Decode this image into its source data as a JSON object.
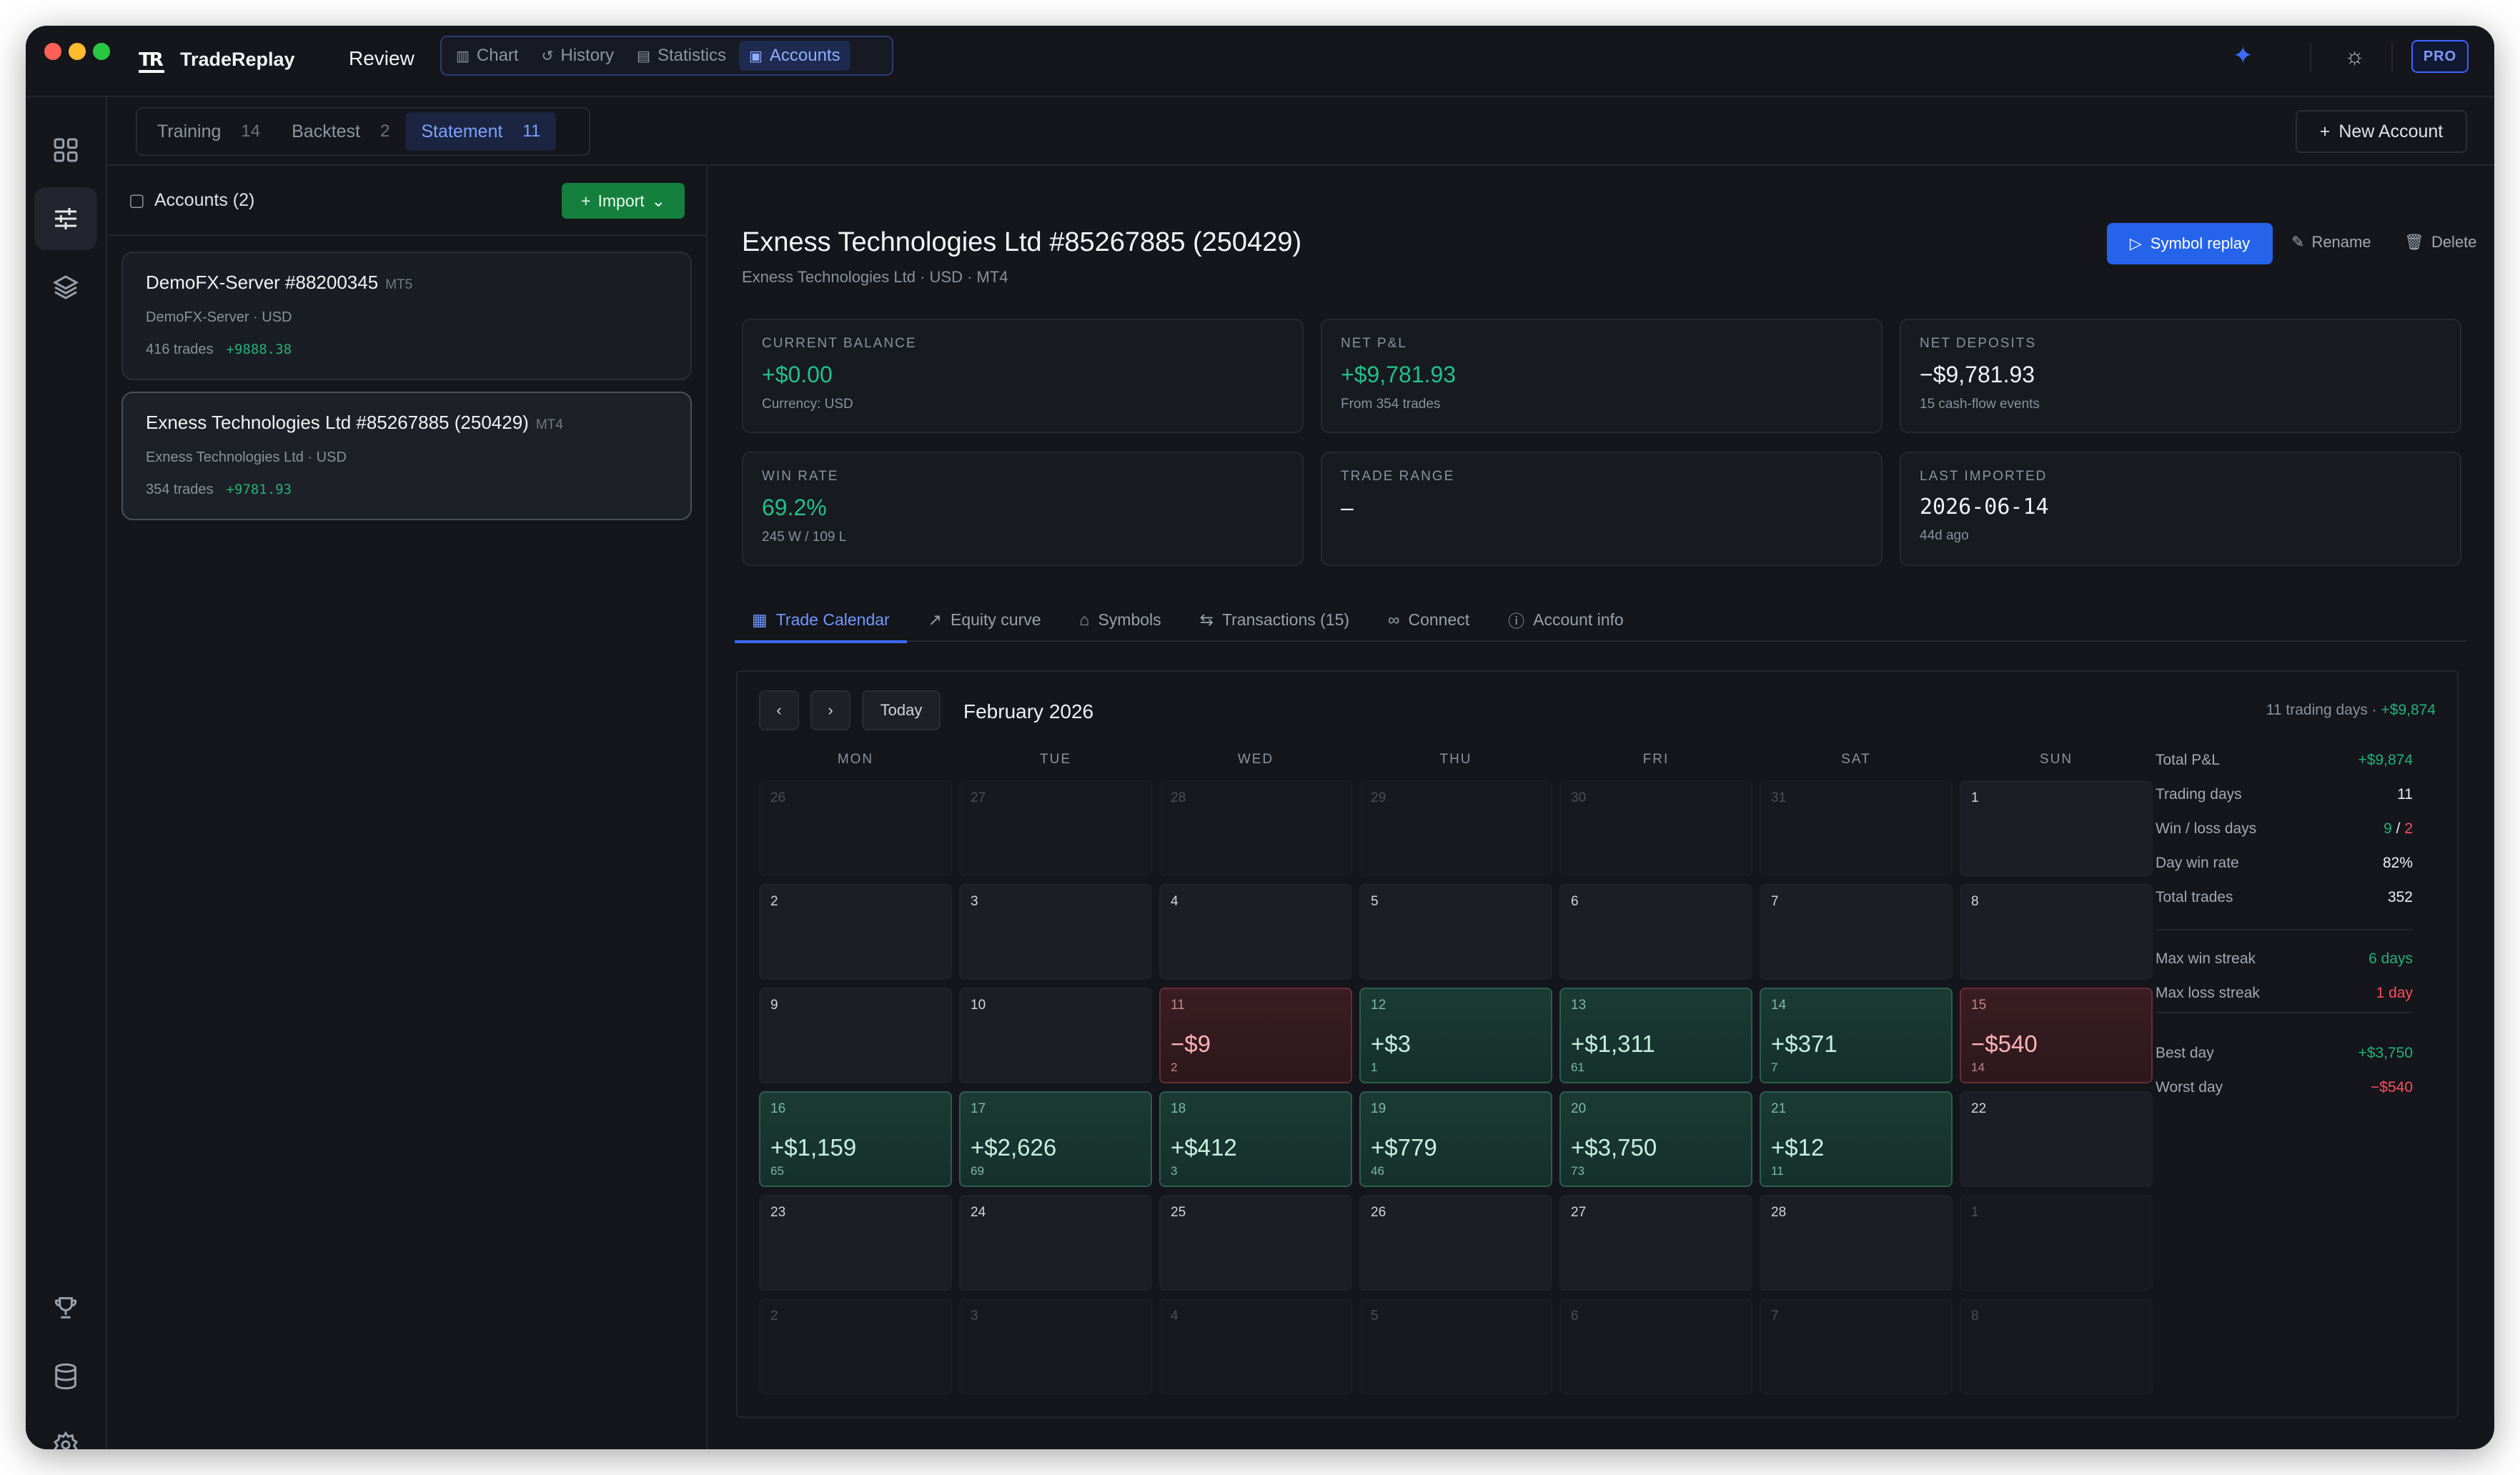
{
  "app": {
    "name": "TradeReplay",
    "logo": "TR",
    "review_label": "Review",
    "nav": [
      {
        "label": "Chart",
        "icon": "bar-chart-icon"
      },
      {
        "label": "History",
        "icon": "history-icon"
      },
      {
        "label": "Statistics",
        "icon": "statistics-icon"
      },
      {
        "label": "Accounts",
        "icon": "wallet-icon",
        "active": true
      }
    ],
    "pro_label": "PRO",
    "accent": "#3b6cff"
  },
  "subtabs": [
    {
      "label": "Training",
      "count": "14"
    },
    {
      "label": "Backtest",
      "count": "2"
    },
    {
      "label": "Statement",
      "count": "11",
      "active": true
    }
  ],
  "new_account_label": "New Account",
  "accounts_panel": {
    "title": "Accounts (2)",
    "import_label": "Import",
    "accounts": [
      {
        "name": "DemoFX-Server #88200345",
        "platform": "MT5",
        "sub": "DemoFX-Server · USD",
        "trades": "416 trades",
        "pnl": "+9888.38"
      },
      {
        "name": "Exness Technologies Ltd #85267885 (250429)",
        "platform": "MT4",
        "sub": "Exness Technologies Ltd · USD",
        "trades": "354 trades",
        "pnl": "+9781.93",
        "selected": true
      }
    ]
  },
  "account": {
    "title": "Exness Technologies Ltd #85267885 (250429)",
    "subtitle": "Exness Technologies Ltd · USD · MT4",
    "symbol_replay_label": "Symbol replay",
    "rename_label": "Rename",
    "delete_label": "Delete",
    "stats": [
      {
        "key": "CURRENT BALANCE",
        "value": "+$0.00",
        "sub": "Currency: USD",
        "style": "green"
      },
      {
        "key": "NET P&L",
        "value": "+$9,781.93",
        "sub": "From 354 trades",
        "style": "green"
      },
      {
        "key": "NET DEPOSITS",
        "value": "−$9,781.93",
        "sub": "15 cash-flow events",
        "style": ""
      },
      {
        "key": "WIN RATE",
        "value": "69.2%",
        "sub": "245 W / 109 L",
        "style": "green"
      },
      {
        "key": "TRADE RANGE",
        "value": "–",
        "sub": "",
        "style": ""
      },
      {
        "key": "LAST IMPORTED",
        "value": "2026-06-14",
        "sub": "44d ago",
        "style": "mono"
      }
    ]
  },
  "tabs": [
    {
      "label": "Trade Calendar",
      "icon": "calendar-icon",
      "active": true
    },
    {
      "label": "Equity curve",
      "icon": "trend-icon"
    },
    {
      "label": "Symbols",
      "icon": "tag-icon"
    },
    {
      "label": "Transactions (15)",
      "icon": "transfer-icon"
    },
    {
      "label": "Connect",
      "icon": "link-icon"
    },
    {
      "label": "Account info",
      "icon": "info-icon"
    }
  ],
  "calendar": {
    "month": "February 2026",
    "today_label": "Today",
    "summary_prefix": "11 trading days ·",
    "summary_value": "+$9,874",
    "weekdays": [
      "MON",
      "TUE",
      "WED",
      "THU",
      "FRI",
      "SAT",
      "SUN"
    ],
    "days": [
      {
        "d": "26",
        "m": true
      },
      {
        "d": "27",
        "m": true
      },
      {
        "d": "28",
        "m": true
      },
      {
        "d": "29",
        "m": true
      },
      {
        "d": "30",
        "m": true
      },
      {
        "d": "31",
        "m": true
      },
      {
        "d": "1"
      },
      {
        "d": "2"
      },
      {
        "d": "3"
      },
      {
        "d": "4"
      },
      {
        "d": "5"
      },
      {
        "d": "6"
      },
      {
        "d": "7"
      },
      {
        "d": "8"
      },
      {
        "d": "9"
      },
      {
        "d": "10"
      },
      {
        "d": "11",
        "pnl": "−$9",
        "trades": "2",
        "s": "neg"
      },
      {
        "d": "12",
        "pnl": "+$3",
        "trades": "1",
        "s": "pos"
      },
      {
        "d": "13",
        "pnl": "+$1,311",
        "trades": "61",
        "s": "pos"
      },
      {
        "d": "14",
        "pnl": "+$371",
        "trades": "7",
        "s": "pos"
      },
      {
        "d": "15",
        "pnl": "−$540",
        "trades": "14",
        "s": "neg"
      },
      {
        "d": "16",
        "pnl": "+$1,159",
        "trades": "65",
        "s": "pos"
      },
      {
        "d": "17",
        "pnl": "+$2,626",
        "trades": "69",
        "s": "pos"
      },
      {
        "d": "18",
        "pnl": "+$412",
        "trades": "3",
        "s": "pos"
      },
      {
        "d": "19",
        "pnl": "+$779",
        "trades": "46",
        "s": "pos"
      },
      {
        "d": "20",
        "pnl": "+$3,750",
        "trades": "73",
        "s": "pos"
      },
      {
        "d": "21",
        "pnl": "+$12",
        "trades": "11",
        "s": "pos"
      },
      {
        "d": "22"
      },
      {
        "d": "23"
      },
      {
        "d": "24"
      },
      {
        "d": "25"
      },
      {
        "d": "26"
      },
      {
        "d": "27"
      },
      {
        "d": "28"
      },
      {
        "d": "1",
        "m": true
      },
      {
        "d": "2",
        "m": true
      },
      {
        "d": "3",
        "m": true
      },
      {
        "d": "4",
        "m": true
      },
      {
        "d": "5",
        "m": true
      },
      {
        "d": "6",
        "m": true
      },
      {
        "d": "7",
        "m": true
      },
      {
        "d": "8",
        "m": true
      }
    ],
    "side_stats": [
      {
        "label": "Total P&L",
        "value": "+$9,874",
        "style": "g"
      },
      {
        "label": "Trading days",
        "value": "11",
        "style": ""
      },
      {
        "label": "Win / loss days",
        "value": "9 / 2",
        "style": "wl"
      },
      {
        "label": "Day win rate",
        "value": "82%",
        "style": ""
      },
      {
        "label": "Total trades",
        "value": "352",
        "style": ""
      },
      {
        "label": "Max win streak",
        "value": "6 days",
        "style": "g"
      },
      {
        "label": "Max loss streak",
        "value": "1 day",
        "style": "r"
      },
      {
        "label": "Best day",
        "value": "+$3,750",
        "style": "g"
      },
      {
        "label": "Worst day",
        "value": "−$540",
        "style": "r"
      }
    ]
  }
}
